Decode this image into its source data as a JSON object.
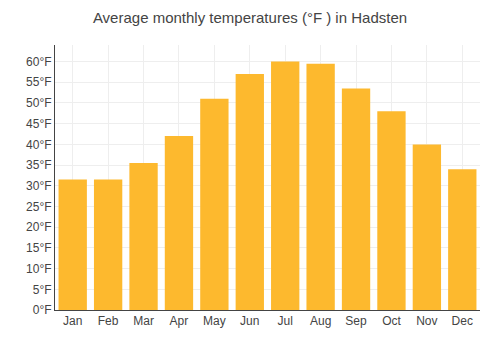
{
  "chart_data": {
    "type": "bar",
    "title": "Average monthly temperatures (°F ) in Hadsten",
    "categories": [
      "Jan",
      "Feb",
      "Mar",
      "Apr",
      "May",
      "Jun",
      "Jul",
      "Aug",
      "Sep",
      "Oct",
      "Nov",
      "Dec"
    ],
    "values": [
      31.5,
      31.5,
      35.5,
      42.0,
      51.0,
      57.0,
      60.0,
      59.5,
      53.5,
      48.0,
      40.0,
      34.0
    ],
    "color": "#FDB92E",
    "ylim": [
      0,
      64
    ],
    "yticks": [
      {
        "value": 0,
        "label": "0°F"
      },
      {
        "value": 5,
        "label": "5°F"
      },
      {
        "value": 10,
        "label": "10°F"
      },
      {
        "value": 15,
        "label": "15°F"
      },
      {
        "value": 20,
        "label": "20°F"
      },
      {
        "value": 25,
        "label": "25°F"
      },
      {
        "value": 30,
        "label": "30°F"
      },
      {
        "value": 35,
        "label": "35°F"
      },
      {
        "value": 40,
        "label": "40°F"
      },
      {
        "value": 45,
        "label": "45°F"
      },
      {
        "value": 50,
        "label": "50°F"
      },
      {
        "value": 55,
        "label": "55°F"
      },
      {
        "value": 60,
        "label": "60°F"
      }
    ],
    "grid": true
  }
}
